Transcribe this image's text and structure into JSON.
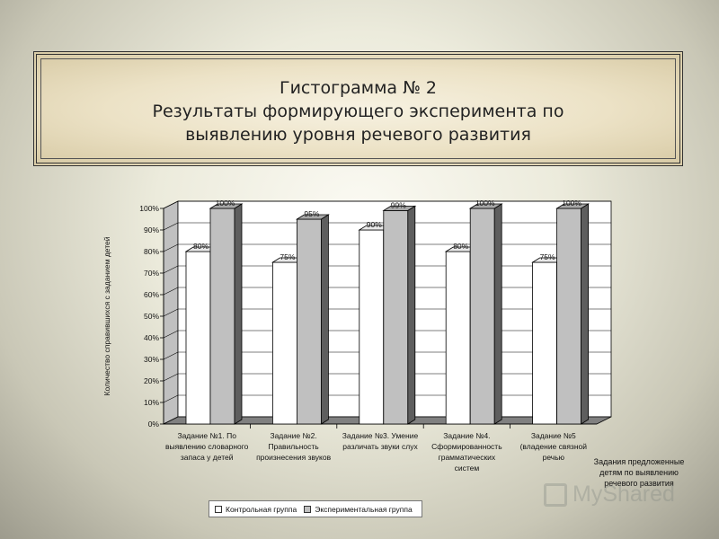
{
  "title": {
    "line1": "Гистограмма № 2",
    "line2": "Результаты формирующего эксперимента по",
    "line3": "выявлению уровня речевого развития"
  },
  "side_note": "Задания предложенные детям по выявлению речевого развития",
  "watermark_text": "MyShared",
  "colors": {
    "control": "#ffffff",
    "experimental": "#c0c0c0",
    "wall": "#c0c0c0",
    "floor": "#808080"
  },
  "chart_data": {
    "type": "bar",
    "ylabel": "Количество справившихся с заданием детей",
    "xlabel": "",
    "ylim": [
      0,
      100
    ],
    "yticks": [
      "0%",
      "10%",
      "20%",
      "30%",
      "40%",
      "50%",
      "60%",
      "70%",
      "80%",
      "90%",
      "100%"
    ],
    "categories": [
      [
        "Задание №1. По",
        "выявлению словарного",
        "запаса у детей"
      ],
      [
        "Задание №2.",
        "Правильность",
        "произнесения звуков"
      ],
      [
        "Задание №3. Умение",
        "различать звуки слух"
      ],
      [
        "Задание №4.",
        "Сформированность",
        "грамматических",
        "систем"
      ],
      [
        "Задание №5",
        "(владение связной",
        "речью"
      ]
    ],
    "series": [
      {
        "name": "Контрольная группа",
        "values": [
          80,
          75,
          90,
          80,
          75
        ],
        "labels": [
          "80%",
          "75%",
          "90%",
          "80%",
          "75%"
        ]
      },
      {
        "name": "Экспериментальная группа",
        "values": [
          100,
          95,
          99,
          100,
          100
        ],
        "labels": [
          "100%",
          "95%",
          "99%",
          "100%",
          "100%"
        ]
      }
    ],
    "legend_position": "bottom",
    "grid": true
  }
}
